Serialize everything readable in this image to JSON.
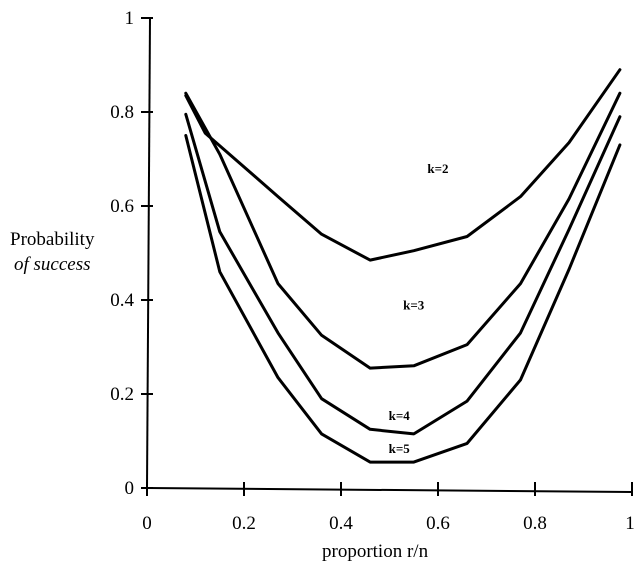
{
  "chart_data": {
    "type": "line",
    "xlabel": "proportion r/n",
    "ylabel": [
      "Probability",
      "of success"
    ],
    "xlim": [
      0,
      1
    ],
    "ylim": [
      0,
      1
    ],
    "x_ticks": [
      "0",
      "0.2",
      "0.4",
      "0.6",
      "0.8",
      "1"
    ],
    "y_ticks": [
      "0",
      "0.2",
      "0.4",
      "0.6",
      "0.8",
      "1"
    ],
    "grid": false,
    "legend": "none (series labelled inline)",
    "series": [
      {
        "name": "k=2",
        "points": [
          [
            0.08,
            0.835
          ],
          [
            0.12,
            0.755
          ],
          [
            0.27,
            0.62
          ],
          [
            0.36,
            0.54
          ],
          [
            0.46,
            0.485
          ],
          [
            0.55,
            0.505
          ],
          [
            0.66,
            0.535
          ],
          [
            0.77,
            0.62
          ],
          [
            0.87,
            0.735
          ],
          [
            0.975,
            0.89
          ]
        ]
      },
      {
        "name": "k=3",
        "points": [
          [
            0.08,
            0.84
          ],
          [
            0.15,
            0.71
          ],
          [
            0.27,
            0.435
          ],
          [
            0.36,
            0.325
          ],
          [
            0.46,
            0.255
          ],
          [
            0.55,
            0.26
          ],
          [
            0.66,
            0.305
          ],
          [
            0.77,
            0.435
          ],
          [
            0.87,
            0.615
          ],
          [
            0.975,
            0.84
          ]
        ]
      },
      {
        "name": "k=4",
        "points": [
          [
            0.08,
            0.795
          ],
          [
            0.15,
            0.545
          ],
          [
            0.27,
            0.33
          ],
          [
            0.36,
            0.19
          ],
          [
            0.46,
            0.125
          ],
          [
            0.55,
            0.115
          ],
          [
            0.66,
            0.185
          ],
          [
            0.77,
            0.33
          ],
          [
            0.87,
            0.55
          ],
          [
            0.975,
            0.79
          ]
        ]
      },
      {
        "name": "k=5",
        "points": [
          [
            0.08,
            0.75
          ],
          [
            0.15,
            0.46
          ],
          [
            0.27,
            0.235
          ],
          [
            0.36,
            0.115
          ],
          [
            0.46,
            0.055
          ],
          [
            0.55,
            0.055
          ],
          [
            0.66,
            0.095
          ],
          [
            0.77,
            0.23
          ],
          [
            0.87,
            0.465
          ],
          [
            0.975,
            0.73
          ]
        ]
      }
    ]
  }
}
